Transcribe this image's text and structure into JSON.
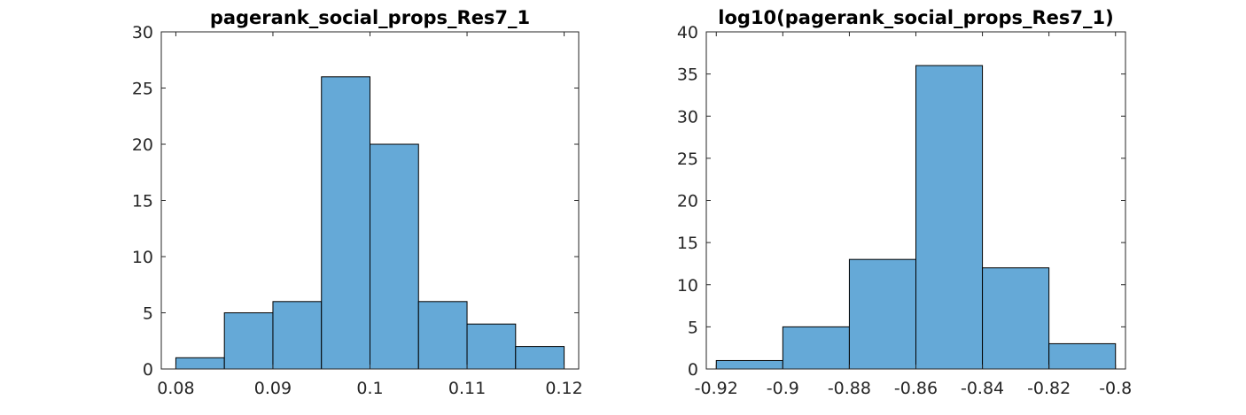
{
  "chart_data": [
    {
      "type": "bar",
      "title": "pagerank_social_props_Res7_1",
      "xlabel": "",
      "ylabel": "",
      "bin_edges": [
        0.08,
        0.085,
        0.09,
        0.095,
        0.1,
        0.105,
        0.11,
        0.115,
        0.12
      ],
      "values": [
        1,
        5,
        6,
        26,
        20,
        6,
        4,
        2
      ],
      "xlim": [
        0.0785,
        0.1215
      ],
      "ylim": [
        0,
        30
      ],
      "xticks": [
        0.08,
        0.09,
        0.1,
        0.11,
        0.12
      ],
      "xtick_labels": [
        "0.08",
        "0.09",
        "0.1",
        "0.11",
        "0.12"
      ],
      "yticks": [
        0,
        5,
        10,
        15,
        20,
        25,
        30
      ],
      "ytick_labels": [
        "0",
        "5",
        "10",
        "15",
        "20",
        "25",
        "30"
      ],
      "bar_color": "#65a9d7",
      "grid": false
    },
    {
      "type": "bar",
      "title": "log10(pagerank_social_props_Res7_1)",
      "xlabel": "",
      "ylabel": "",
      "bin_edges": [
        -0.92,
        -0.9,
        -0.88,
        -0.86,
        -0.84,
        -0.82,
        -0.8
      ],
      "values": [
        1,
        5,
        13,
        36,
        12,
        3
      ],
      "xlim": [
        -0.923,
        -0.797
      ],
      "ylim": [
        0,
        40
      ],
      "xticks": [
        -0.92,
        -0.9,
        -0.88,
        -0.86,
        -0.84,
        -0.82,
        -0.8
      ],
      "xtick_labels": [
        "-0.92",
        "-0.9",
        "-0.88",
        "-0.86",
        "-0.84",
        "-0.82",
        "-0.8"
      ],
      "yticks": [
        0,
        5,
        10,
        15,
        20,
        25,
        30,
        35,
        40
      ],
      "ytick_labels": [
        "0",
        "5",
        "10",
        "15",
        "20",
        "25",
        "30",
        "35",
        "40"
      ],
      "bar_color": "#65a9d7",
      "grid": false
    }
  ]
}
